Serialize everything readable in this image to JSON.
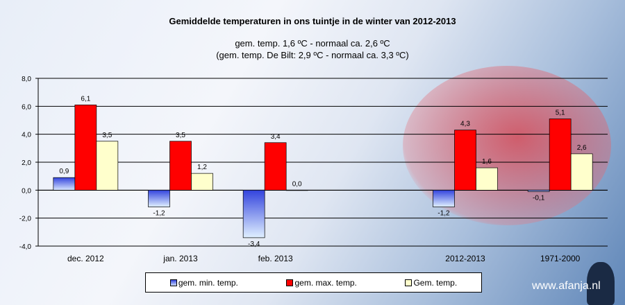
{
  "chart_data": {
    "type": "bar",
    "title": "Gemiddelde temperaturen in ons tuintje in de winter van 2012-2013",
    "subtitle": [
      "gem. temp. 1,6 ºC - normaal ca. 2,6 ºC",
      "(gem. temp. De Bilt: 2,9 ºC - normaal ca. 3,3 ºC)"
    ],
    "categories": [
      "dec. 2012",
      "jan. 2013",
      "feb. 2013",
      "",
      "2012-2013",
      "1971-2000"
    ],
    "series": [
      {
        "name": "gem. min. temp.",
        "color": "#3344dd",
        "values": [
          0.9,
          -1.2,
          -3.4,
          null,
          -1.2,
          -0.1
        ],
        "labels": [
          "0,9",
          "-1,2",
          "-3,4",
          "",
          "-1,2",
          "-0,1"
        ]
      },
      {
        "name": "gem. max. temp.",
        "color": "#ff0000",
        "values": [
          6.1,
          3.5,
          3.4,
          null,
          4.3,
          5.1
        ],
        "labels": [
          "6,1",
          "3,5",
          "3,4",
          "",
          "4,3",
          "5,1"
        ]
      },
      {
        "name": "Gem. temp.",
        "color": "#ffffcc",
        "values": [
          3.5,
          1.2,
          0.0,
          null,
          1.6,
          2.6
        ],
        "labels": [
          "3,5",
          "1,2",
          "0,0",
          "",
          "1,6",
          "2,6"
        ]
      }
    ],
    "ylim": [
      -4,
      8
    ],
    "yticks": [
      "-4,0",
      "-2,0",
      "0,0",
      "2,0",
      "4,0",
      "6,0",
      "8,0"
    ],
    "grid": true,
    "legend": "bottom"
  },
  "watermark": "www.afanja.nl"
}
